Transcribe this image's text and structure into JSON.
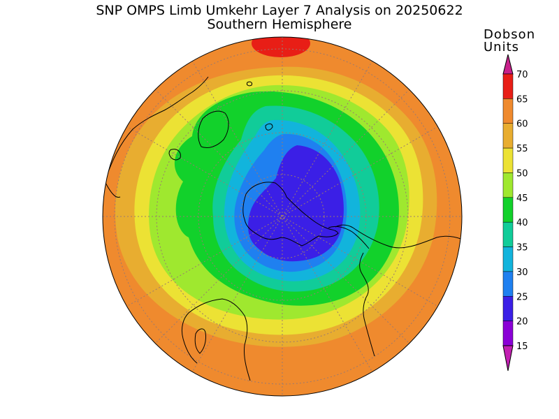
{
  "title": {
    "line1": "SNP OMPS Limb Umkehr Layer 7 Analysis on 20250622",
    "line2": "Southern Hemisphere"
  },
  "colorbar": {
    "units_line1": "Dobson",
    "units_line2": "Units",
    "levels": [
      {
        "label": "15",
        "color": "#8a00d6"
      },
      {
        "label": "20",
        "color": "#3b1fe6"
      },
      {
        "label": "25",
        "color": "#1f80f0"
      },
      {
        "label": "30",
        "color": "#12b4dc"
      },
      {
        "label": "35",
        "color": "#11cc99"
      },
      {
        "label": "40",
        "color": "#12d12b"
      },
      {
        "label": "45",
        "color": "#9fe82f"
      },
      {
        "label": "50",
        "color": "#ece234"
      },
      {
        "label": "55",
        "color": "#e8ad30"
      },
      {
        "label": "60",
        "color": "#ef8a2e"
      },
      {
        "label": "65",
        "color": "#e81e16"
      },
      {
        "label": "70",
        "color": "#c8208b"
      }
    ],
    "low_arrow_color": "#c31fb3",
    "high_arrow_color": "#c8208b"
  },
  "map": {
    "projection": "south-polar-stereographic",
    "graticule": true,
    "coastlines": true
  }
}
